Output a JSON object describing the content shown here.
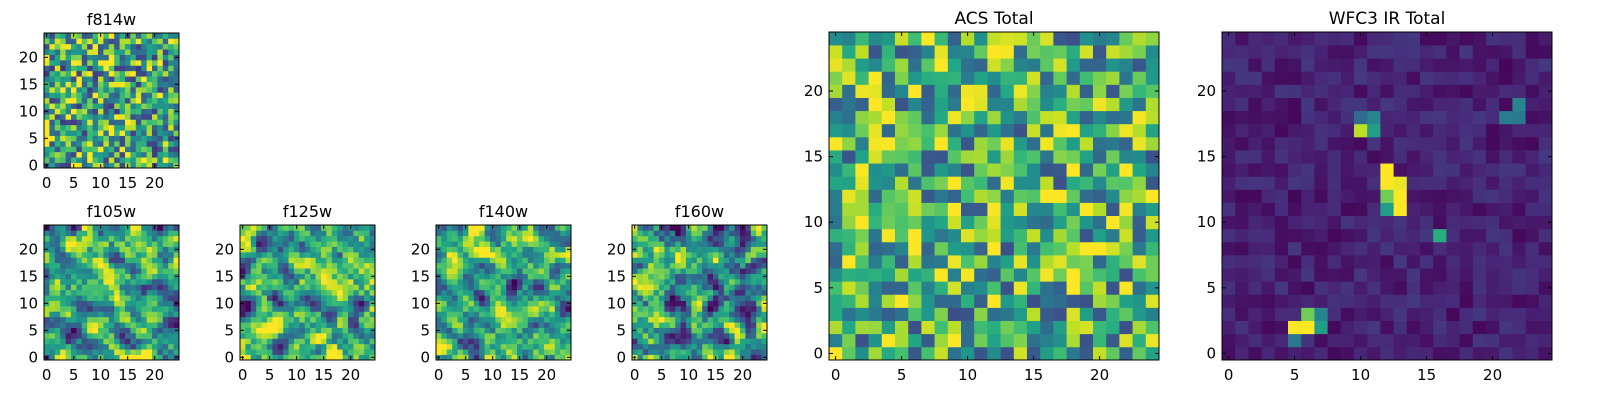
{
  "chart_data": [
    {
      "type": "heatmap",
      "title": "f814w",
      "colormap": "viridis",
      "grid_size": 25,
      "seed": 814,
      "smooth": 0,
      "mean": 0.6,
      "spread": 0.55,
      "blobs": [],
      "xticks": [
        0,
        5,
        10,
        15,
        20
      ],
      "yticks": [
        0,
        5,
        10,
        15,
        20
      ],
      "xlim": [
        0,
        25
      ],
      "ylim": [
        0,
        25
      ]
    },
    {
      "type": "heatmap",
      "title": "f105w",
      "colormap": "viridis",
      "grid_size": 25,
      "seed": 105,
      "smooth": 1,
      "mean": 0.62,
      "spread": 0.8,
      "blobs": [],
      "xticks": [
        0,
        5,
        10,
        15,
        20
      ],
      "yticks": [
        0,
        5,
        10,
        15,
        20
      ],
      "xlim": [
        0,
        25
      ],
      "ylim": [
        0,
        25
      ]
    },
    {
      "type": "heatmap",
      "title": "f125w",
      "colormap": "viridis",
      "grid_size": 25,
      "seed": 125,
      "smooth": 1,
      "mean": 0.63,
      "spread": 0.8,
      "blobs": [],
      "xticks": [
        0,
        5,
        10,
        15,
        20
      ],
      "yticks": [
        0,
        5,
        10,
        15,
        20
      ],
      "xlim": [
        0,
        25
      ],
      "ylim": [
        0,
        25
      ]
    },
    {
      "type": "heatmap",
      "title": "f140w",
      "colormap": "viridis",
      "grid_size": 25,
      "seed": 140,
      "smooth": 1,
      "mean": 0.62,
      "spread": 0.8,
      "blobs": [],
      "xticks": [
        0,
        5,
        10,
        15,
        20
      ],
      "yticks": [
        0,
        5,
        10,
        15,
        20
      ],
      "xlim": [
        0,
        25
      ],
      "ylim": [
        0,
        25
      ]
    },
    {
      "type": "heatmap",
      "title": "f160w",
      "colormap": "viridis",
      "grid_size": 25,
      "seed": 160,
      "smooth": 1,
      "mean": 0.6,
      "spread": 0.8,
      "blobs": [],
      "xticks": [
        0,
        5,
        10,
        15,
        20
      ],
      "yticks": [
        0,
        5,
        10,
        15,
        20
      ],
      "xlim": [
        0,
        25
      ],
      "ylim": [
        0,
        25
      ]
    },
    {
      "type": "heatmap",
      "title": "ACS Total",
      "colormap": "viridis",
      "grid_size": 25,
      "seed": 999,
      "smooth": 0,
      "mean": 0.64,
      "spread": 0.5,
      "blobs": [],
      "xticks": [
        0,
        5,
        10,
        15,
        20
      ],
      "yticks": [
        0,
        5,
        10,
        15,
        20
      ],
      "xlim": [
        0,
        25
      ],
      "ylim": [
        0,
        25
      ]
    },
    {
      "type": "heatmap",
      "title": "WFC3 IR Total",
      "colormap": "viridis",
      "grid_size": 25,
      "seed": 333,
      "smooth": 0,
      "mean": 0.09,
      "spread": 0.09,
      "blobs": [
        {
          "col": 12,
          "row": 14,
          "value": 1.0
        },
        {
          "col": 12,
          "row": 13,
          "value": 1.0
        },
        {
          "col": 13,
          "row": 13,
          "value": 0.97
        },
        {
          "col": 13,
          "row": 12,
          "value": 1.0
        },
        {
          "col": 12,
          "row": 12,
          "value": 0.78
        },
        {
          "col": 13,
          "row": 11,
          "value": 1.0
        },
        {
          "col": 12,
          "row": 11,
          "value": 0.55
        },
        {
          "col": 10,
          "row": 17,
          "value": 0.9
        },
        {
          "col": 11,
          "row": 17,
          "value": 0.55
        },
        {
          "col": 11,
          "row": 18,
          "value": 0.45
        },
        {
          "col": 10,
          "row": 18,
          "value": 0.35
        },
        {
          "col": 5,
          "row": 2,
          "value": 1.0
        },
        {
          "col": 6,
          "row": 2,
          "value": 1.0
        },
        {
          "col": 6,
          "row": 3,
          "value": 0.78
        },
        {
          "col": 7,
          "row": 2,
          "value": 0.55
        },
        {
          "col": 7,
          "row": 3,
          "value": 0.45
        },
        {
          "col": 5,
          "row": 1,
          "value": 0.4
        },
        {
          "col": 22,
          "row": 19,
          "value": 0.45
        },
        {
          "col": 21,
          "row": 18,
          "value": 0.42
        },
        {
          "col": 22,
          "row": 18,
          "value": 0.4
        },
        {
          "col": 16,
          "row": 9,
          "value": 0.62
        }
      ],
      "xticks": [
        0,
        5,
        10,
        15,
        20
      ],
      "yticks": [
        0,
        5,
        10,
        15,
        20
      ],
      "xlim": [
        0,
        25
      ],
      "ylim": [
        0,
        25
      ]
    }
  ]
}
